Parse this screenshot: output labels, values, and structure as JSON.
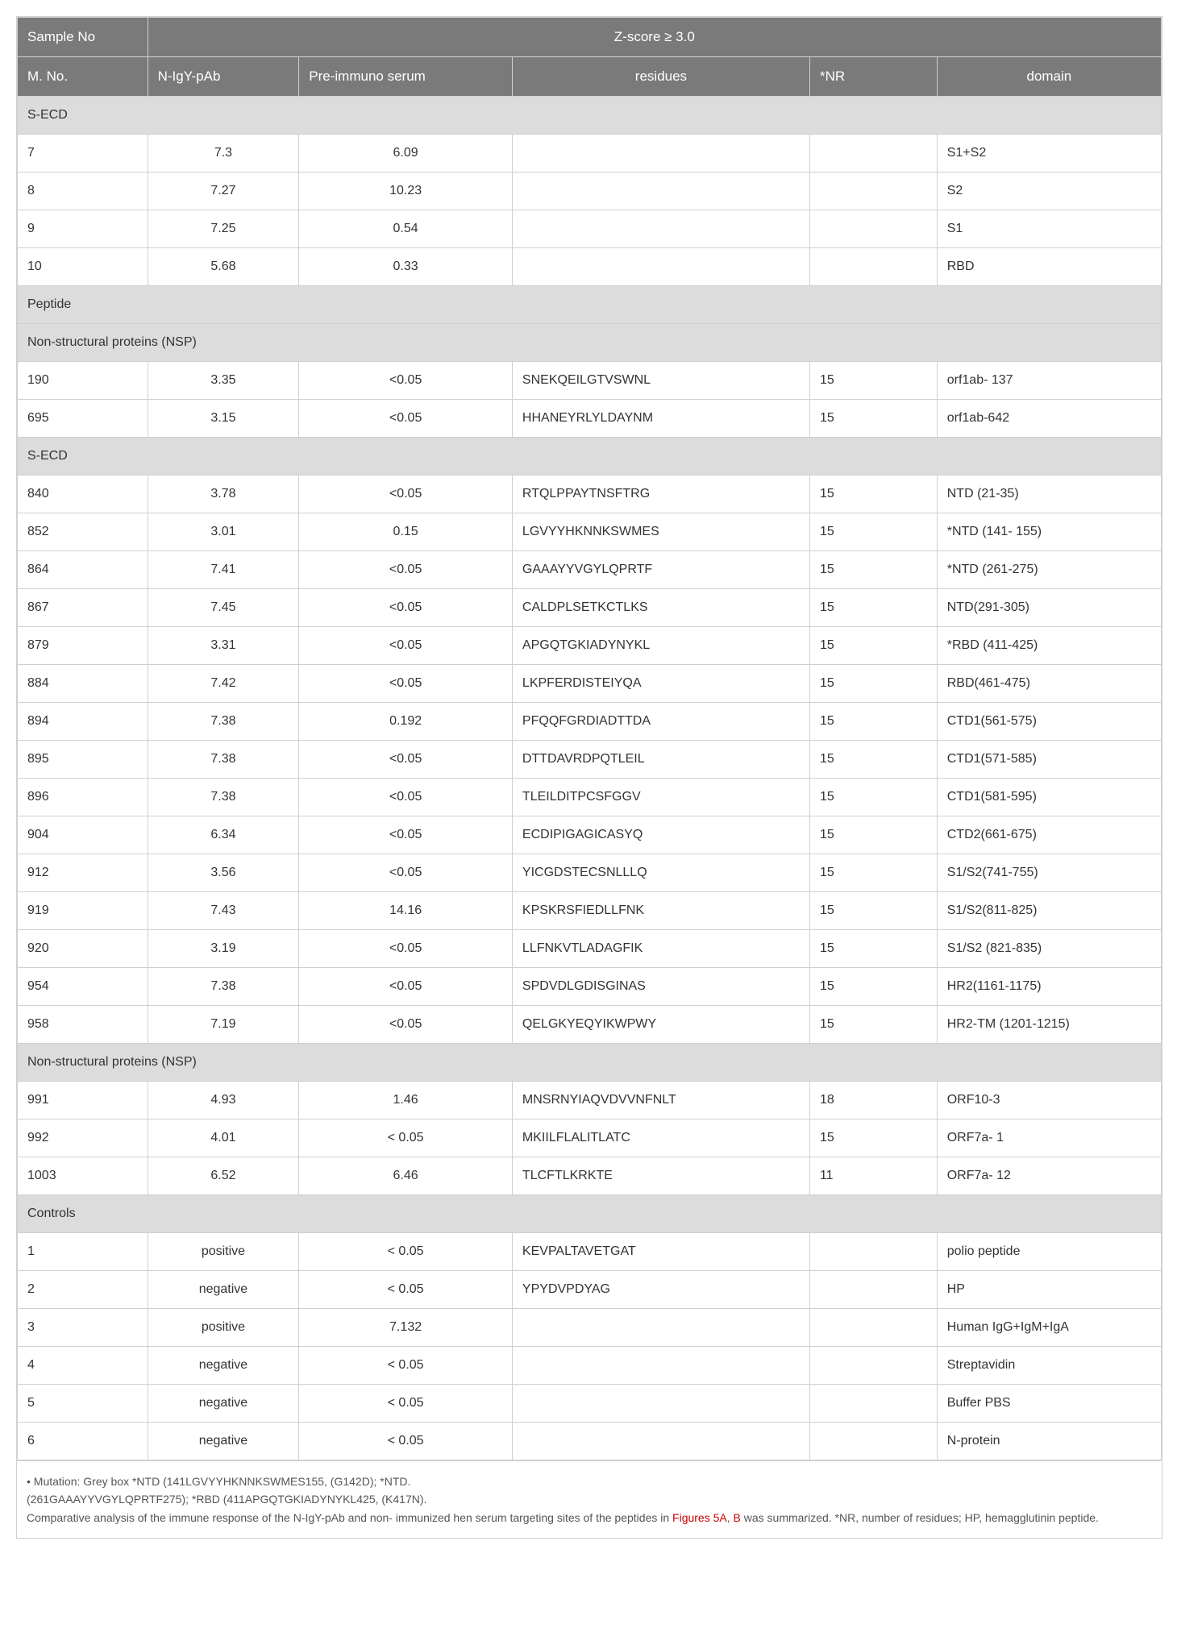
{
  "header": {
    "sample_no": "Sample No",
    "zscore": "Z-score ≥ 3.0",
    "mno": "M. No.",
    "igy": "N-IgY-pAb",
    "pre": "Pre-immuno serum",
    "residues": "residues",
    "nr": "*NR",
    "domain": "domain"
  },
  "sections": [
    {
      "label": "S-ECD",
      "rows": [
        {
          "mno": "7",
          "igy": "7.3",
          "pre": "6.09",
          "residues": "",
          "nr": "",
          "domain": "S1+S2"
        },
        {
          "mno": "8",
          "igy": "7.27",
          "pre": "10.23",
          "residues": "",
          "nr": "",
          "domain": "S2"
        },
        {
          "mno": "9",
          "igy": "7.25",
          "pre": "0.54",
          "residues": "",
          "nr": "",
          "domain": "S1"
        },
        {
          "mno": "10",
          "igy": "5.68",
          "pre": "0.33",
          "residues": "",
          "nr": "",
          "domain": "RBD"
        }
      ]
    },
    {
      "label": "Peptide",
      "rows": []
    },
    {
      "label": "Non-structural proteins (NSP)",
      "rows": [
        {
          "mno": "190",
          "igy": "3.35",
          "pre": "<0.05",
          "residues": "SNEKQEILGTVSWNL",
          "nr": "15",
          "domain": "orf1ab- 137"
        },
        {
          "mno": "695",
          "igy": "3.15",
          "pre": "<0.05",
          "residues": "HHANEYRLYLDAYNM",
          "nr": "15",
          "domain": "orf1ab-642"
        }
      ]
    },
    {
      "label": "S-ECD",
      "rows": [
        {
          "mno": "840",
          "igy": "3.78",
          "pre": "<0.05",
          "residues": "RTQLPPAYTNSFTRG",
          "nr": "15",
          "domain": "NTD (21-35)"
        },
        {
          "mno": "852",
          "igy": "3.01",
          "pre": "0.15",
          "residues": "LGVYYHKNNKSWMES",
          "nr": "15",
          "domain": "*NTD (141- 155)"
        },
        {
          "mno": "864",
          "igy": "7.41",
          "pre": "<0.05",
          "residues": "GAAAYYVGYLQPRTF",
          "nr": "15",
          "domain": "*NTD (261-275)"
        },
        {
          "mno": "867",
          "igy": "7.45",
          "pre": "<0.05",
          "residues": "CALDPLSETKCTLKS",
          "nr": "15",
          "domain": "NTD(291-305)"
        },
        {
          "mno": "879",
          "igy": "3.31",
          "pre": "<0.05",
          "residues": "APGQTGKIADYNYKL",
          "nr": "15",
          "domain": "*RBD (411-425)"
        },
        {
          "mno": "884",
          "igy": "7.42",
          "pre": "<0.05",
          "residues": "LKPFERDISTEIYQA",
          "nr": "15",
          "domain": "RBD(461-475)"
        },
        {
          "mno": "894",
          "igy": "7.38",
          "pre": "0.192",
          "residues": "PFQQFGRDIADTTDA",
          "nr": "15",
          "domain": "CTD1(561-575)"
        },
        {
          "mno": "895",
          "igy": "7.38",
          "pre": "<0.05",
          "residues": "DTTDAVRDPQTLEIL",
          "nr": "15",
          "domain": "CTD1(571-585)"
        },
        {
          "mno": "896",
          "igy": "7.38",
          "pre": "<0.05",
          "residues": "TLEILDITPCSFGGV",
          "nr": "15",
          "domain": "CTD1(581-595)"
        },
        {
          "mno": "904",
          "igy": "6.34",
          "pre": "<0.05",
          "residues": "ECDIPIGAGICASYQ",
          "nr": "15",
          "domain": "CTD2(661-675)"
        },
        {
          "mno": "912",
          "igy": "3.56",
          "pre": "<0.05",
          "residues": "YICGDSTECSNLLLQ",
          "nr": "15",
          "domain": "S1/S2(741-755)"
        },
        {
          "mno": "919",
          "igy": "7.43",
          "pre": "14.16",
          "residues": "KPSKRSFIEDLLFNK",
          "nr": "15",
          "domain": "S1/S2(811-825)"
        },
        {
          "mno": "920",
          "igy": "3.19",
          "pre": "<0.05",
          "residues": "LLFNKVTLADAGFIK",
          "nr": "15",
          "domain": "S1/S2 (821-835)"
        },
        {
          "mno": "954",
          "igy": "7.38",
          "pre": "<0.05",
          "residues": "SPDVDLGDISGINAS",
          "nr": "15",
          "domain": "HR2(1161-1175)"
        },
        {
          "mno": "958",
          "igy": "7.19",
          "pre": "<0.05",
          "residues": "QELGKYEQYIKWPWY",
          "nr": "15",
          "domain": "HR2-TM (1201-1215)"
        }
      ]
    },
    {
      "label": "Non-structural proteins (NSP)",
      "rows": [
        {
          "mno": "991",
          "igy": "4.93",
          "pre": "1.46",
          "residues": "MNSRNYIAQVDVVNFNLT",
          "nr": "18",
          "domain": "ORF10-3"
        },
        {
          "mno": "992",
          "igy": "4.01",
          "pre": "< 0.05",
          "residues": "MKIILFLALITLATC",
          "nr": "15",
          "domain": "ORF7a- 1"
        },
        {
          "mno": "1003",
          "igy": "6.52",
          "pre": "6.46",
          "residues": "TLCFTLKRKTE",
          "nr": "11",
          "domain": "ORF7a- 12"
        }
      ]
    },
    {
      "label": "Controls",
      "rows": [
        {
          "mno": "1",
          "igy": "positive",
          "pre": "< 0.05",
          "residues": "KEVPALTAVETGAT",
          "nr": "",
          "domain": "polio peptide"
        },
        {
          "mno": "2",
          "igy": "negative",
          "pre": "< 0.05",
          "residues": "YPYDVPDYAG",
          "nr": "",
          "domain": "HP"
        },
        {
          "mno": "3",
          "igy": "positive",
          "pre": "7.132",
          "residues": "",
          "nr": "",
          "domain": "Human IgG+IgM+IgA"
        },
        {
          "mno": "4",
          "igy": "negative",
          "pre": "< 0.05",
          "residues": "",
          "nr": "",
          "domain": "Streptavidin"
        },
        {
          "mno": "5",
          "igy": "negative",
          "pre": "< 0.05",
          "residues": "",
          "nr": "",
          "domain": "Buffer PBS"
        },
        {
          "mno": "6",
          "igy": "negative",
          "pre": "< 0.05",
          "residues": "",
          "nr": "",
          "domain": "N-protein"
        }
      ]
    }
  ],
  "footnote": {
    "line1": "• Mutation: Grey box *NTD (141LGVYYHKNNKSWMES155, (G142D); *NTD.",
    "line2": "(261GAAAYYVGYLQPRTF275); *RBD (411APGQTGKIADYNYKL425, (K417N).",
    "line3a": "Comparative analysis of the immune response of the N-IgY-pAb and non- immunized hen serum targeting sites of the peptides in ",
    "fig5a": "Figures 5A",
    "sep": ", ",
    "figb": "B",
    "line3b": " was summarized. *NR, number of residues; HP, hemagglutinin peptide."
  },
  "style": {
    "header_bg": "#7a7a7a",
    "header_color": "#ffffff",
    "section_bg": "#dcdcdc",
    "border_color": "#d0d0d0",
    "text_color": "#333333",
    "red": "#cc0000",
    "font_size_body": 16,
    "font_size_footnote": 14
  }
}
